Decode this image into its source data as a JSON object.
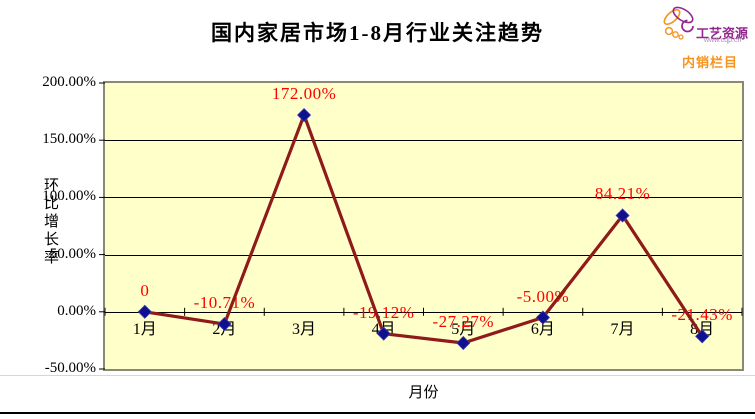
{
  "logo": {
    "brand": "工艺资源",
    "url": "www.cqp.cn",
    "tagline": "内销栏目"
  },
  "chart_data": {
    "type": "line",
    "title": "国内家居市场1-8月行业关注趋势",
    "categories": [
      "1月",
      "2月",
      "3月",
      "4月",
      "5月",
      "6月",
      "7月",
      "8月"
    ],
    "values": [
      0,
      -10.71,
      172.0,
      -19.12,
      -27.27,
      -5.0,
      84.21,
      -21.43
    ],
    "point_labels": [
      "0",
      "-10.71%",
      "172.00%",
      "-19.12%",
      "-27.27%",
      "-5.00%",
      "84.21%",
      "-21.43%"
    ],
    "xlabel": "月份",
    "ylabel": "环比增长率",
    "ylim": [
      -50,
      200
    ],
    "ytick_interval": 50,
    "ytick_labels": [
      "200.00%",
      "150.00%",
      "100.00%",
      "50.00%",
      "0.00%",
      "-50.00%"
    ],
    "grid": true,
    "legend": "none",
    "colors": {
      "line": "#8E1A1A",
      "marker": "#10108E",
      "marker_edge": "#3A3AB8",
      "point_label": "#FF0000",
      "plot_bg": "#FFFFC9",
      "plot_border": "#8A8A74",
      "gridline": "#000000"
    }
  }
}
